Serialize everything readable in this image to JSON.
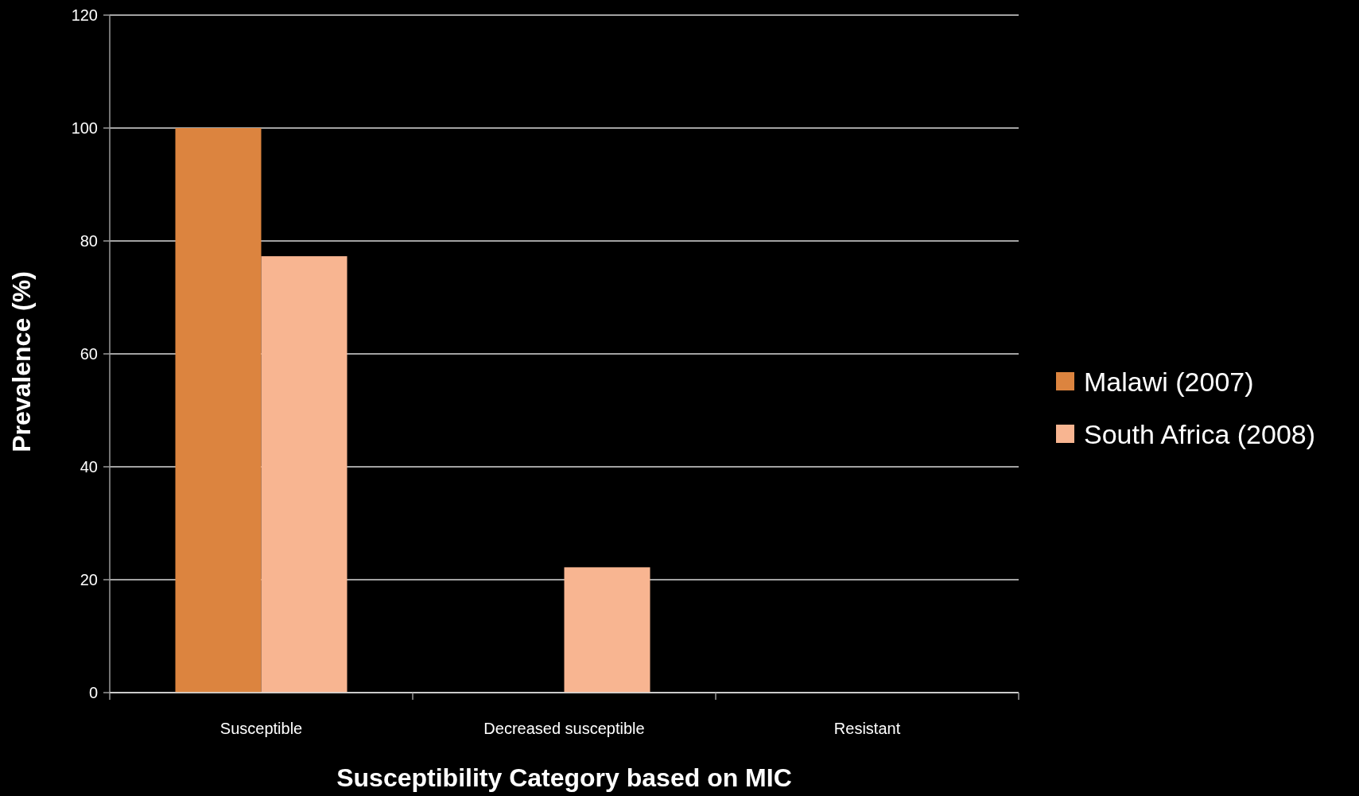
{
  "chart_data": {
    "type": "bar",
    "xlabel": "Susceptibility Category based on MIC",
    "ylabel": "Prevalence (%)",
    "categories": [
      "Susceptible",
      "Decreased susceptible",
      "Resistant"
    ],
    "series": [
      {
        "name": "Malawi (2007)",
        "color": "#dc843f",
        "values": [
          100,
          0,
          0
        ]
      },
      {
        "name": "South Africa (2008)",
        "color": "#f8b591",
        "values": [
          77.3,
          22.2,
          0
        ]
      }
    ],
    "ylim": [
      0,
      120
    ],
    "yticks": [
      0,
      20,
      40,
      60,
      80,
      100,
      120
    ],
    "grid": "y",
    "legend": "right"
  }
}
